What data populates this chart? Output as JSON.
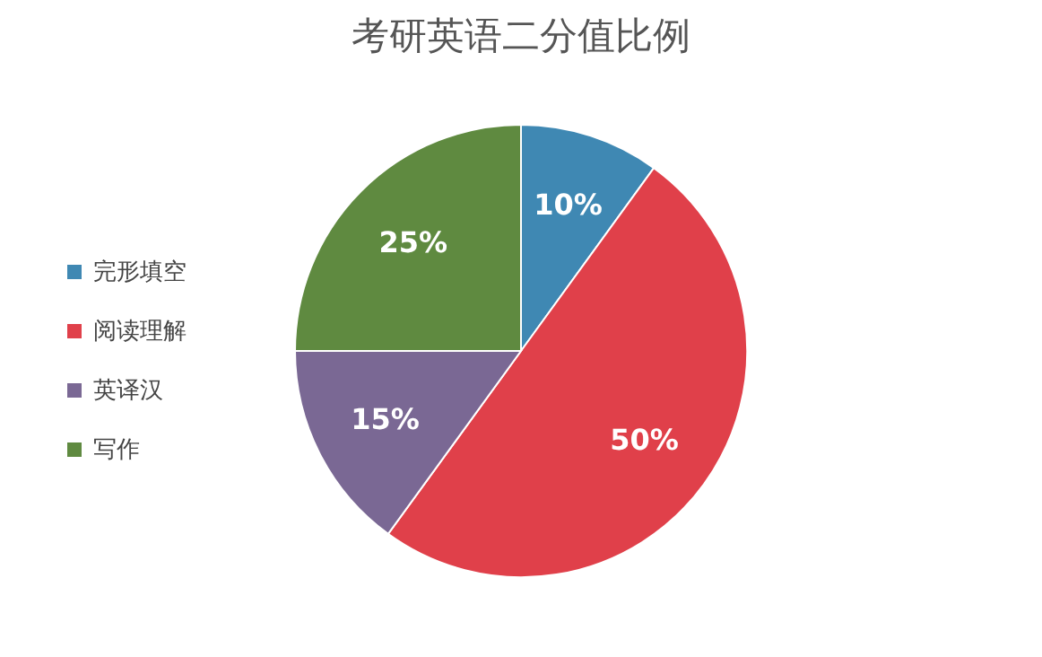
{
  "chart_data": {
    "type": "pie",
    "title": "考研英语二分值比例",
    "categories": [
      "完形填空",
      "阅读理解",
      "英译汉",
      "写作"
    ],
    "values": [
      10,
      50,
      15,
      25
    ],
    "colors": [
      "#3f88b3",
      "#e0404a",
      "#7a6894",
      "#5f8a40"
    ],
    "value_labels": [
      "10%",
      "50%",
      "15%",
      "25%"
    ],
    "legend": "left"
  }
}
